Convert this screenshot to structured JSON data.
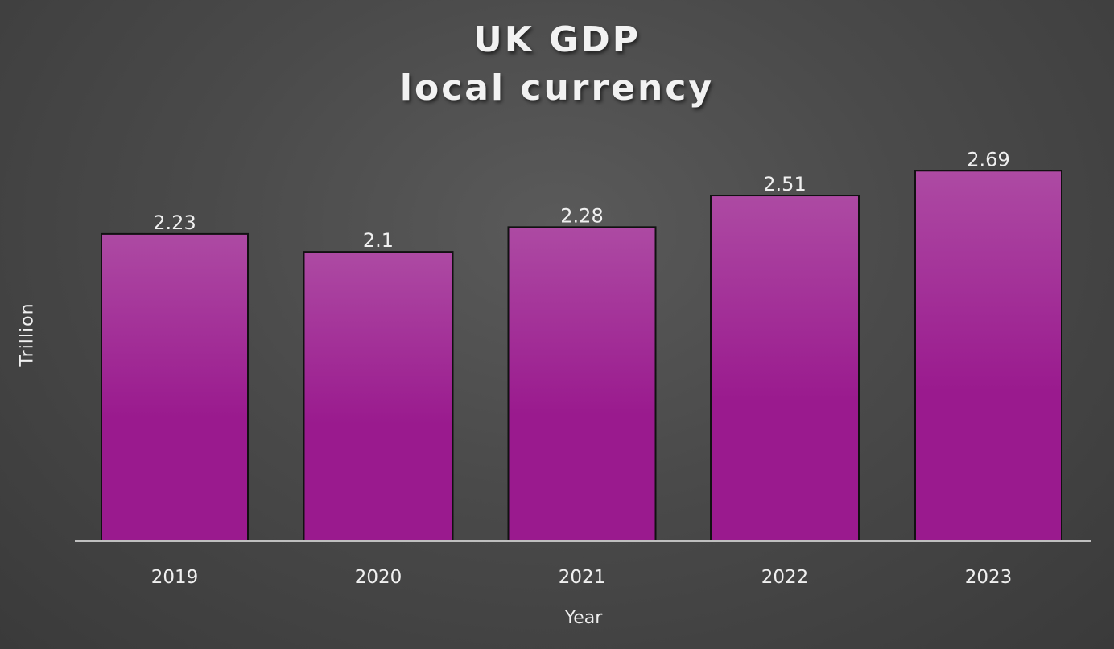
{
  "chart_data": {
    "type": "bar",
    "title": [
      "UK GDP",
      "local currency"
    ],
    "xlabel": "Year",
    "ylabel": "Trillion",
    "categories": [
      "2019",
      "2020",
      "2021",
      "2022",
      "2023"
    ],
    "values": [
      2.23,
      2.1,
      2.28,
      2.51,
      2.69
    ],
    "data_labels": [
      "2.23",
      "2.1",
      "2.28",
      "2.51",
      "2.69"
    ],
    "ylim": [
      0,
      3
    ],
    "grid": false,
    "legend": "none",
    "colors": {
      "bar_top": "#ad4aa3",
      "bar_bottom": "#9a1a8e",
      "bar_stroke": "#111111",
      "axis": "#bfbfbf",
      "text": "#f0f0f0"
    }
  }
}
